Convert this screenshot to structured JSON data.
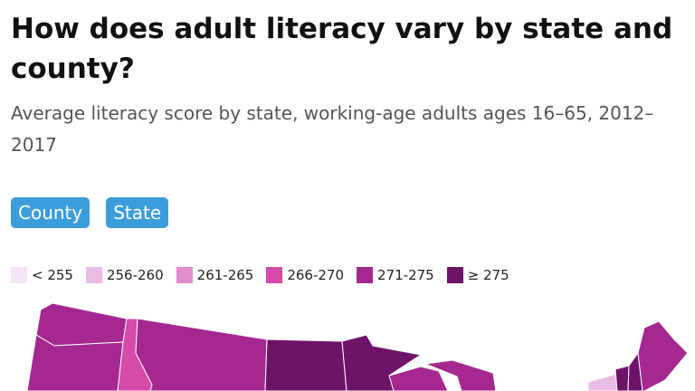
{
  "header": {
    "title": "How does adult literacy vary by state and county?",
    "subtitle": "Average literacy score by state, working-age adults ages 16–65, 2012–2017"
  },
  "buttons": [
    "County",
    "State"
  ],
  "legend": [
    {
      "label": "< 255",
      "color": "#f4e6f6"
    },
    {
      "label": "256-260",
      "color": "#eabbe5"
    },
    {
      "label": "261-265",
      "color": "#e48dcc"
    },
    {
      "label": "266-270",
      "color": "#d64aa9"
    },
    {
      "label": "271-275",
      "color": "#a42890"
    },
    {
      "label": "≥ 275",
      "color": "#6d1468"
    }
  ]
}
